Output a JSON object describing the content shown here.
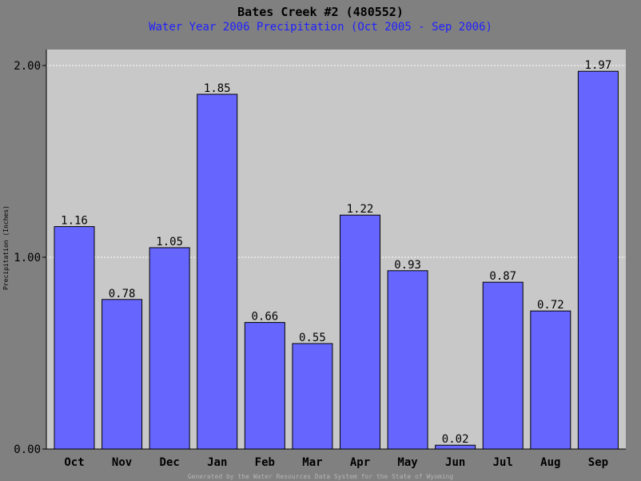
{
  "chart_data": {
    "type": "bar",
    "title": "Bates Creek #2 (480552)",
    "subtitle": "Water Year 2006 Precipitation (Oct 2005 - Sep 2006)",
    "ylabel": "Precipitation (Inches)",
    "xlabel": "",
    "categories": [
      "Oct",
      "Nov",
      "Dec",
      "Jan",
      "Feb",
      "Mar",
      "Apr",
      "May",
      "Jun",
      "Jul",
      "Aug",
      "Sep"
    ],
    "values": [
      1.16,
      0.78,
      1.05,
      1.85,
      0.66,
      0.55,
      1.22,
      0.93,
      0.02,
      0.87,
      0.72,
      1.97
    ],
    "value_labels": [
      "1.16",
      "0.78",
      "1.05",
      "1.85",
      "0.66",
      "0.55",
      "1.22",
      "0.93",
      "0.02",
      "0.87",
      "0.72",
      "1.97"
    ],
    "ylim": [
      0,
      2
    ],
    "yticks": [
      0,
      1,
      2
    ],
    "ytick_labels": [
      "0.00",
      "1.00",
      "2.00"
    ],
    "grid": true,
    "legend": "none",
    "footer": "Generated by the Water Resources Data System for the State of Wyoming",
    "colors": {
      "background": "#808080",
      "plot_area": "#c8c8c8",
      "bar_fill": "#6666ff",
      "bar_stroke": "#000000",
      "title": "#000000",
      "subtitle": "#1f1fff",
      "gridline": "#ffffff",
      "footer": "#b4b4b4"
    }
  }
}
